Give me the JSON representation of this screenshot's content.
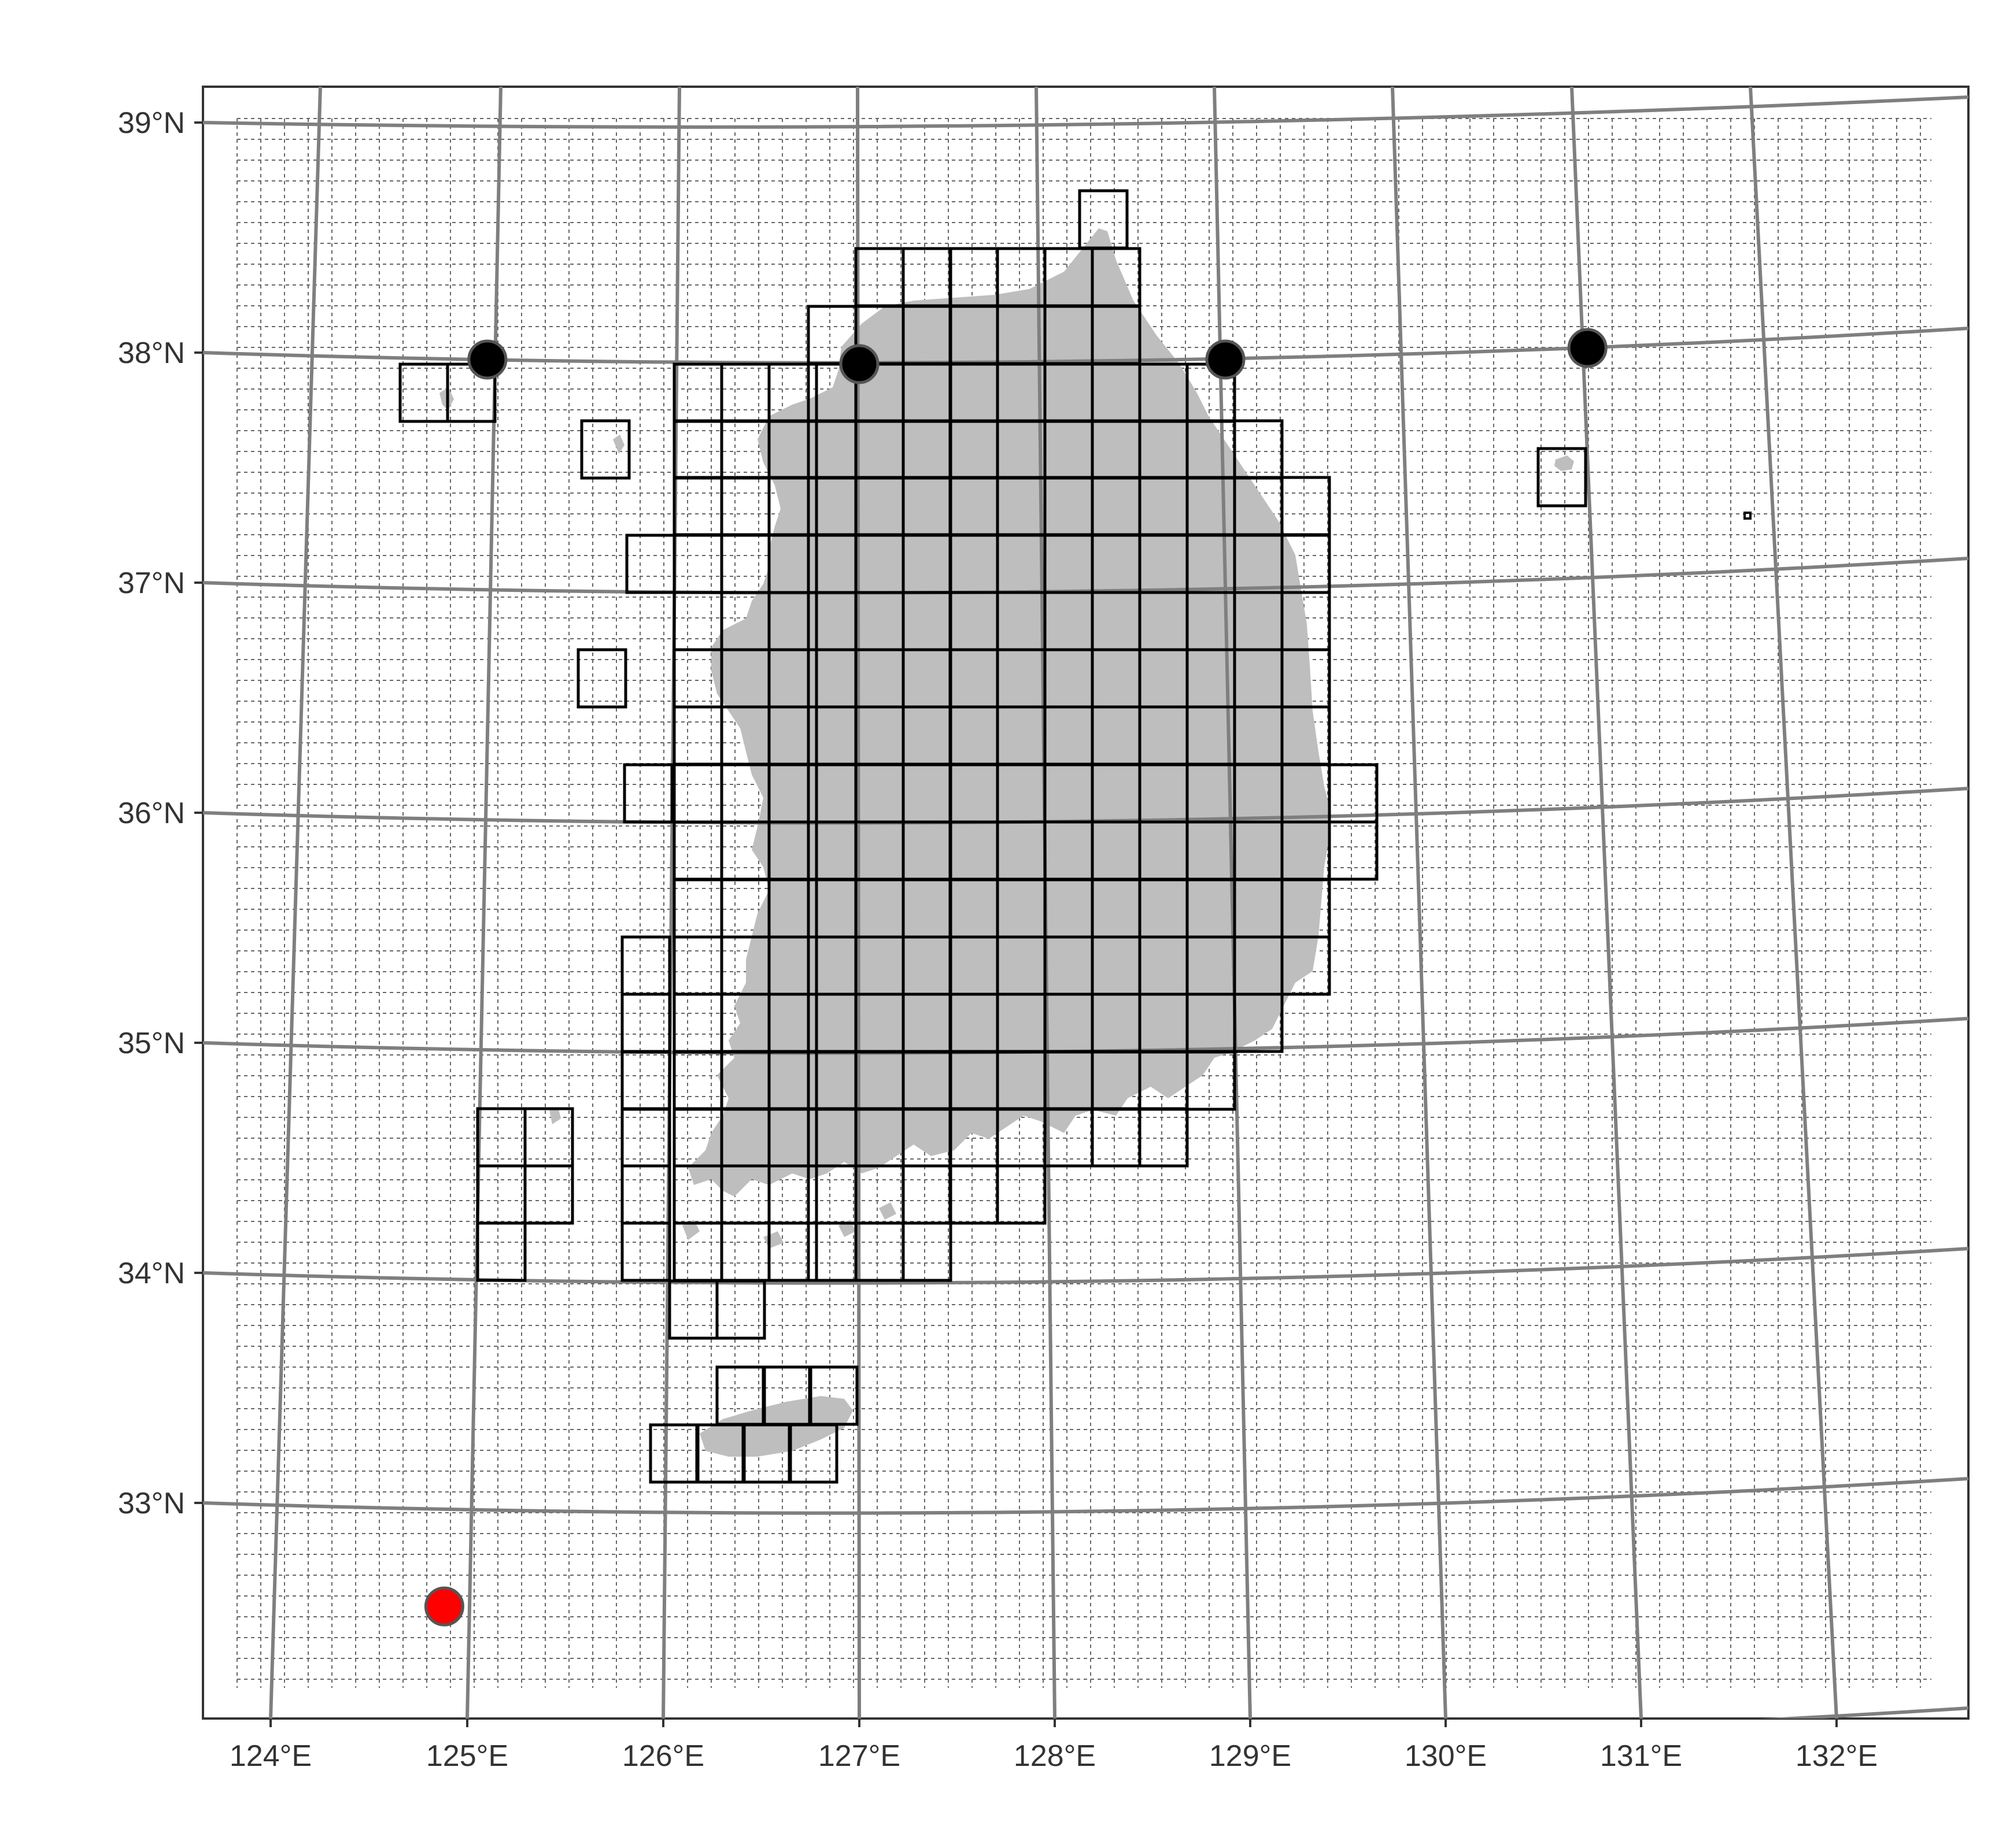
{
  "map": {
    "lat_labels": [
      "39°N",
      "38°N",
      "37°N",
      "36°N",
      "35°N",
      "34°N",
      "33°N"
    ],
    "lon_labels": [
      "124°E",
      "125°E",
      "126°E",
      "127°E",
      "128°E",
      "129°E",
      "130°E",
      "131°E",
      "132°E"
    ],
    "black_points": [
      {
        "lon": 125.1,
        "lat": 37.97
      },
      {
        "lon": 127.0,
        "lat": 37.95
      },
      {
        "lon": 128.87,
        "lat": 37.97
      },
      {
        "lon": 130.72,
        "lat": 38.02
      }
    ],
    "red_point": {
      "lon": 124.88,
      "lat": 32.55
    },
    "colors": {
      "land": "#bebebe",
      "graticule": "#7f7f7f",
      "fine_grid": "#666666",
      "cells": "#000000",
      "red": "#ff0000",
      "black": "#000000"
    }
  }
}
